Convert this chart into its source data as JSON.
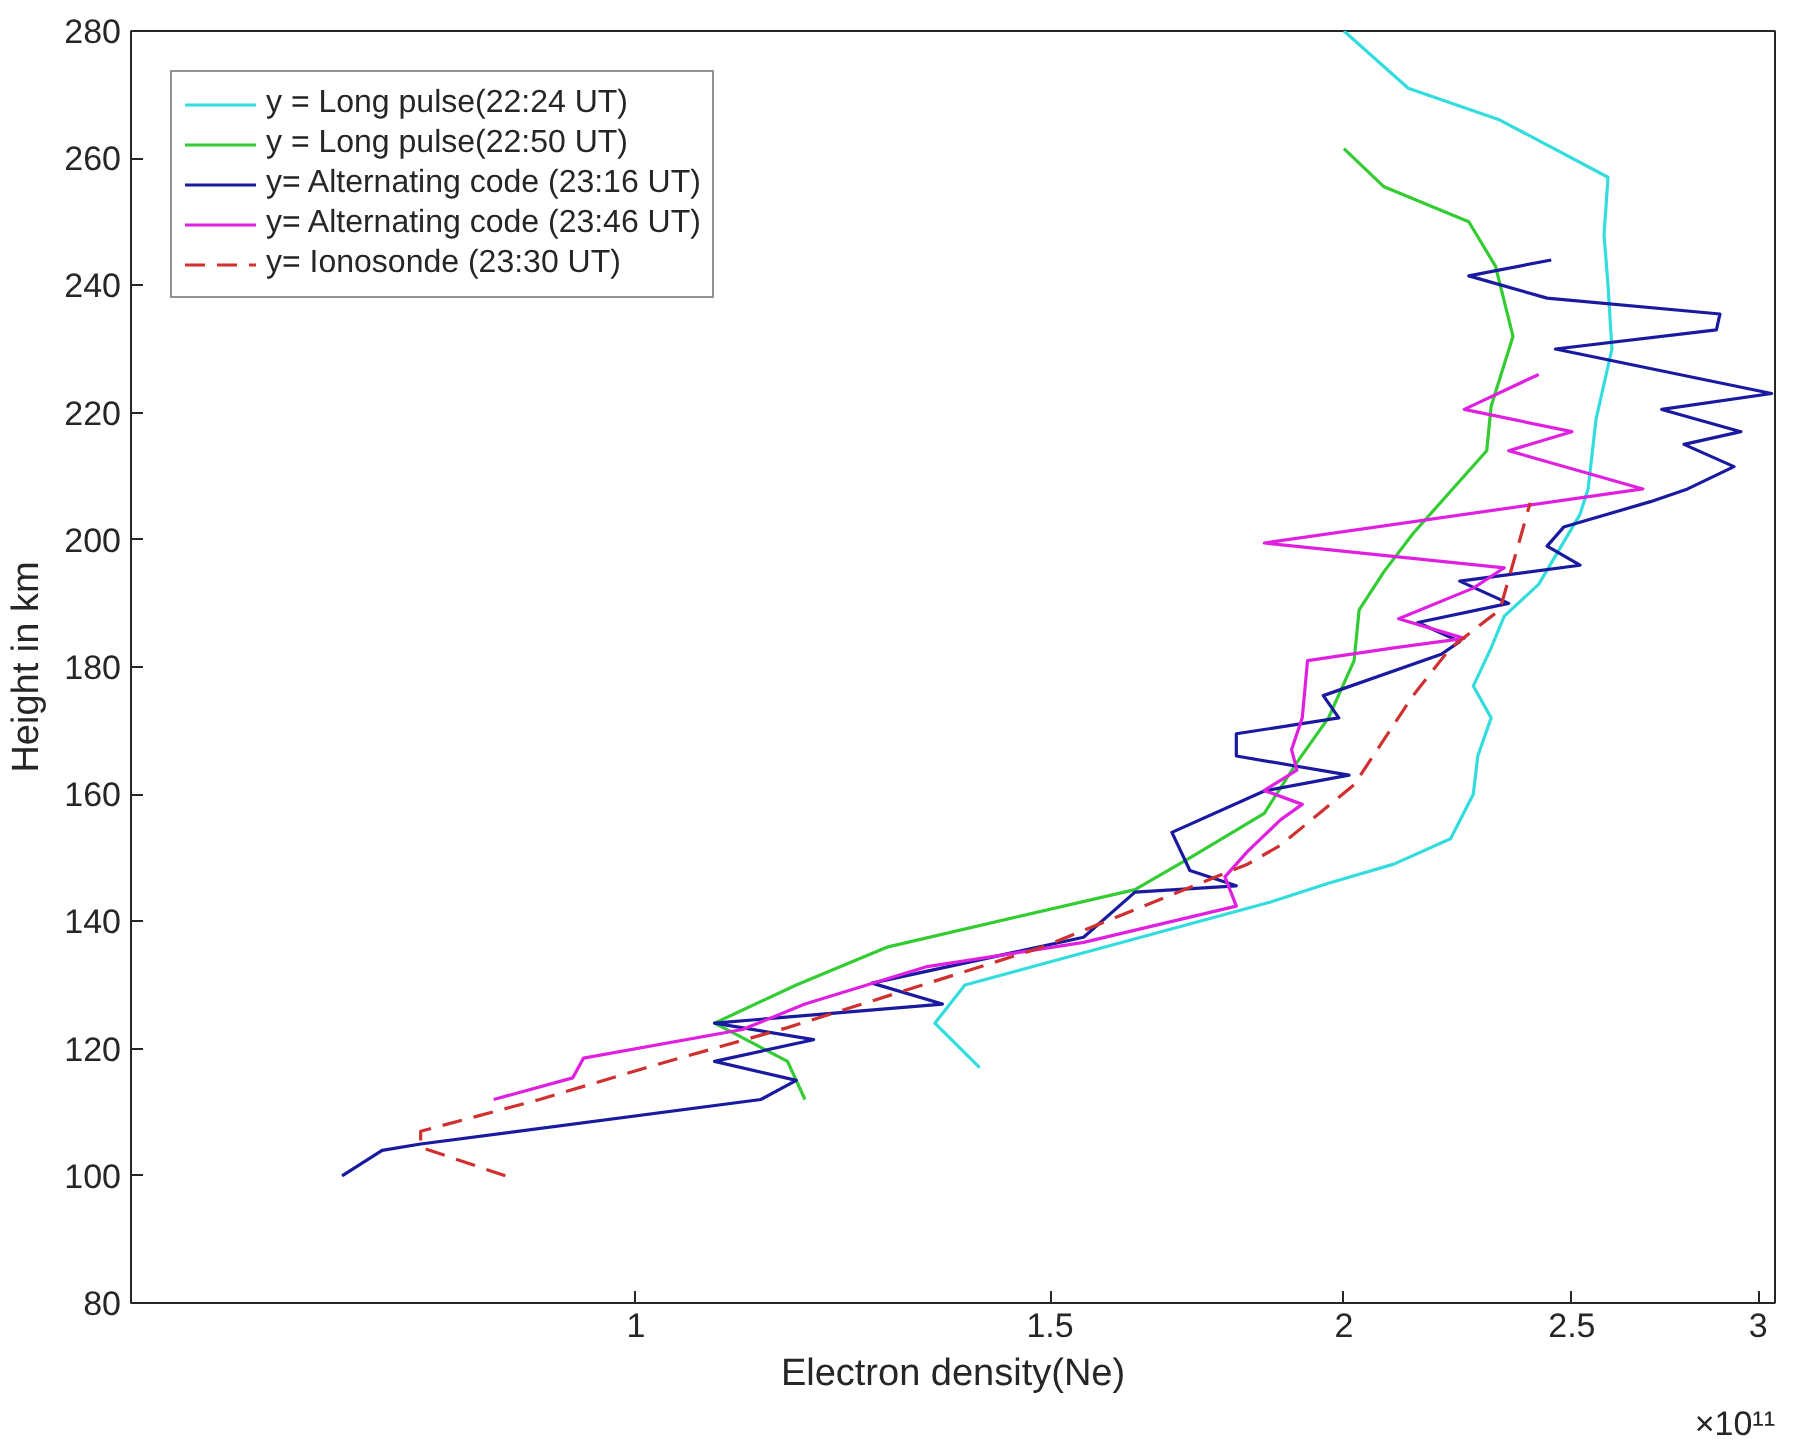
{
  "chart_data": {
    "type": "line",
    "xlabel": "Electron density(Ne)",
    "ylabel": "Height in km",
    "log": "x",
    "xlim": [
      0.61,
      3.05
    ],
    "xticks": [
      1,
      1.5,
      2,
      2.5,
      3
    ],
    "ylim": [
      80,
      280
    ],
    "yticks": [
      80,
      100,
      120,
      140,
      160,
      180,
      200,
      220,
      240,
      260,
      280
    ],
    "grid": false,
    "legend": "top left",
    "marker": "none",
    "annotations": [
      "×10¹¹"
    ],
    "series": [
      {
        "name": "y = Long pulse(22:24 UT)",
        "color": "#33dddd",
        "line_style": "solid",
        "x": [
          2.0,
          2.13,
          2.33,
          2.59,
          2.58,
          2.59,
          2.6,
          2.56,
          2.54,
          2.52,
          2.42,
          2.34,
          2.31,
          2.27,
          2.31,
          2.28,
          2.27,
          2.22,
          2.1,
          1.97,
          1.86,
          1.38,
          1.34,
          1.4
        ],
        "values": [
          280,
          271,
          266,
          257,
          248,
          240,
          230,
          219,
          208,
          204,
          193,
          188,
          183,
          177,
          172,
          166,
          160,
          153,
          149,
          146,
          143,
          130,
          124,
          117
        ]
      },
      {
        "name": "y = Long pulse(22:50 UT)",
        "color": "#33cc33",
        "line_style": "solid",
        "x": [
          2.0,
          2.08,
          2.26,
          2.32,
          2.36,
          2.31,
          2.3,
          2.14,
          2.08,
          2.03,
          2.02,
          1.97,
          1.91,
          1.85,
          1.72,
          1.63,
          1.28,
          1.17,
          1.08,
          1.16,
          1.18
        ],
        "values": [
          261.5,
          255.5,
          250,
          243,
          232,
          221,
          214,
          201,
          195,
          189,
          181,
          172,
          165,
          157,
          150,
          145,
          136,
          130,
          124,
          118,
          112
        ]
      },
      {
        "name": "y= Alternating code (23:16 UT)",
        "color": "#1a1aa0",
        "line_style": "solid",
        "x": [
          2.45,
          2.26,
          2.44,
          2.89,
          2.88,
          2.46,
          3.04,
          2.73,
          2.95,
          2.79,
          2.93,
          2.8,
          2.7,
          2.48,
          2.44,
          2.52,
          2.24,
          2.35,
          2.15,
          2.24,
          2.2,
          1.96,
          1.99,
          1.8,
          1.8,
          2.01,
          1.85,
          1.69,
          1.72,
          1.8,
          1.63,
          1.55,
          1.26,
          1.35,
          1.08,
          1.19,
          1.08,
          1.17,
          1.13,
          0.81,
          0.78,
          0.75
        ],
        "values": [
          244,
          241.5,
          238,
          235.5,
          233,
          230,
          223,
          220.5,
          217,
          215,
          211.5,
          208,
          206,
          202,
          199,
          196,
          193.5,
          190,
          187,
          184,
          182,
          175.5,
          172,
          169.5,
          166,
          163,
          160.5,
          154,
          148,
          145.6,
          144.6,
          137.5,
          130.3,
          127,
          124,
          121.4,
          118,
          115,
          112,
          105,
          104,
          100
        ]
      },
      {
        "name": "y= Alternating code (23:46 UT)",
        "color": "#e020e0",
        "line_style": "solid",
        "x": [
          2.42,
          2.25,
          2.5,
          2.35,
          2.68,
          1.85,
          2.34,
          2.27,
          2.11,
          2.25,
          2.1,
          1.93,
          1.92,
          1.9,
          1.91,
          1.85,
          1.92,
          1.88,
          1.82,
          1.78,
          1.8,
          1.55,
          1.33,
          1.18,
          1.11,
          0.95,
          0.94,
          0.87
        ],
        "values": [
          226,
          220.5,
          217,
          214,
          208,
          199.5,
          195.6,
          192.4,
          187.6,
          184.5,
          183,
          181,
          172,
          167,
          163.8,
          160.6,
          158.4,
          156,
          151,
          147,
          142.4,
          136.7,
          132.9,
          127,
          123,
          118.5,
          115.4,
          112
        ]
      },
      {
        "name": "y= Ionosonde (23:30 UT)",
        "color": "#d03030",
        "line_style": "dashed",
        "x": [
          0.88,
          0.81,
          0.81,
          0.91,
          1.01,
          1.16,
          1.49,
          1.82,
          1.88,
          2.02,
          2.14,
          2.22,
          2.33,
          2.4
        ],
        "values": [
          100,
          104.5,
          107,
          112,
          117,
          123.3,
          136,
          149,
          152,
          161.5,
          175.5,
          183,
          189,
          205.8
        ]
      }
    ]
  }
}
